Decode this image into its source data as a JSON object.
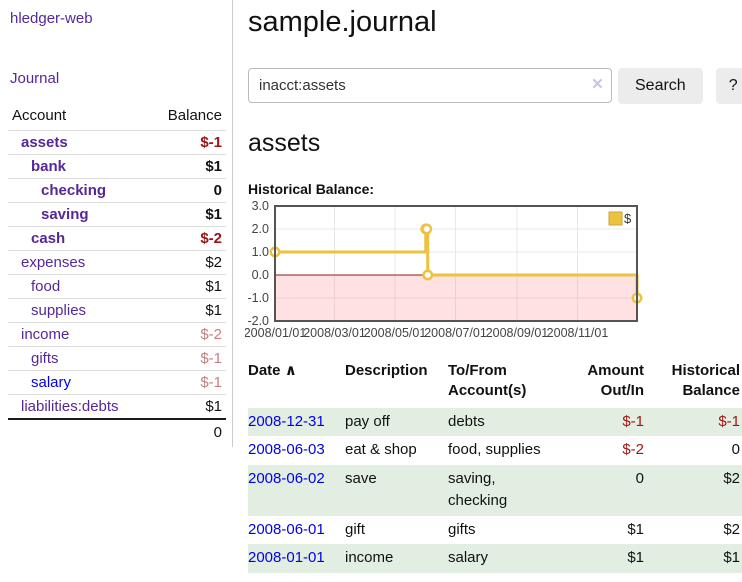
{
  "app": {
    "brand": "hledger-web",
    "nav_journal": "Journal"
  },
  "sidebar": {
    "headers": {
      "account": "Account",
      "balance": "Balance"
    },
    "accounts": [
      {
        "name": "assets",
        "indent": 0,
        "bold": true,
        "balance": "$-1"
      },
      {
        "name": "bank",
        "indent": 1,
        "bold": true,
        "balance": "$1"
      },
      {
        "name": "checking",
        "indent": 2,
        "bold": true,
        "balance": "0"
      },
      {
        "name": "saving",
        "indent": 2,
        "bold": true,
        "balance": "$1"
      },
      {
        "name": "cash",
        "indent": 1,
        "bold": true,
        "balance": "$-2"
      },
      {
        "name": "expenses",
        "indent": 0,
        "bold": false,
        "balance": "$2"
      },
      {
        "name": "food",
        "indent": 1,
        "bold": false,
        "balance": "$1"
      },
      {
        "name": "supplies",
        "indent": 1,
        "bold": false,
        "balance": "$1"
      },
      {
        "name": "income",
        "indent": 0,
        "bold": false,
        "balance": "$-2"
      },
      {
        "name": "gifts",
        "indent": 1,
        "bold": false,
        "balance": "$-1"
      },
      {
        "name": "salary",
        "indent": 1,
        "bold": false,
        "balance": "$-1",
        "blue": true
      },
      {
        "name": "liabilities:debts",
        "indent": 0,
        "bold": false,
        "balance": "$1"
      }
    ],
    "total": "0"
  },
  "header": {
    "title": "sample.journal"
  },
  "search": {
    "value": "inacct:assets",
    "clear_icon": "×",
    "button": "Search",
    "help_button": "?"
  },
  "register": {
    "heading": "assets",
    "chart_label": "Historical Balance:",
    "table": {
      "headers": {
        "date": "Date",
        "sort_icon": "∧",
        "description": "Description",
        "tofrom": "To/From Account(s)",
        "amount": "Amount Out/In",
        "balance": "Historical Balance"
      },
      "rows": [
        {
          "date": "2008-12-31",
          "description": "pay off",
          "accounts": "debts",
          "amount": "$-1",
          "balance": "$-1"
        },
        {
          "date": "2008-06-03",
          "description": "eat & shop",
          "accounts": "food, supplies",
          "amount": "$-2",
          "balance": "0"
        },
        {
          "date": "2008-06-02",
          "description": "save",
          "accounts": "saving, checking",
          "amount": "0",
          "balance": "$2"
        },
        {
          "date": "2008-06-01",
          "description": "gift",
          "accounts": "gifts",
          "amount": "$1",
          "balance": "$2"
        },
        {
          "date": "2008-01-01",
          "description": "income",
          "accounts": "salary",
          "amount": "$1",
          "balance": "$1"
        }
      ]
    }
  },
  "chart_data": {
    "type": "line",
    "step": true,
    "title": "Historical Balance",
    "series": [
      {
        "name": "$",
        "color": "#edc240",
        "points": [
          [
            "2008-01-01",
            1
          ],
          [
            "2008-06-01",
            2
          ],
          [
            "2008-06-02",
            2
          ],
          [
            "2008-06-03",
            0
          ],
          [
            "2008-12-31",
            -1
          ]
        ]
      }
    ],
    "x_ticks": [
      "2008/01/01",
      "2008/03/01",
      "2008/05/01",
      "2008/07/01",
      "2008/09/01",
      "2008/11/01"
    ],
    "y_ticks": [
      3.0,
      2.0,
      1.0,
      0.0,
      -1.0,
      -2.0
    ],
    "xlim": [
      "2008-01-01",
      "2008-12-31"
    ],
    "ylim": [
      -2,
      3
    ],
    "grid": true,
    "legend": {
      "label": "$",
      "position": "top-right"
    },
    "zero_line_color": "#8b1a1a",
    "negative_region_fill": "rgba(255,120,120,0.22)",
    "border_color": "#545454"
  },
  "colors": {
    "link_purple": "#552899",
    "link_blue": "#0000ee",
    "negative_strong": "#a11414",
    "negative_soft": "#c87e7e",
    "row_stripe_green": "#e3eee3",
    "button_bg": "#ececec"
  }
}
